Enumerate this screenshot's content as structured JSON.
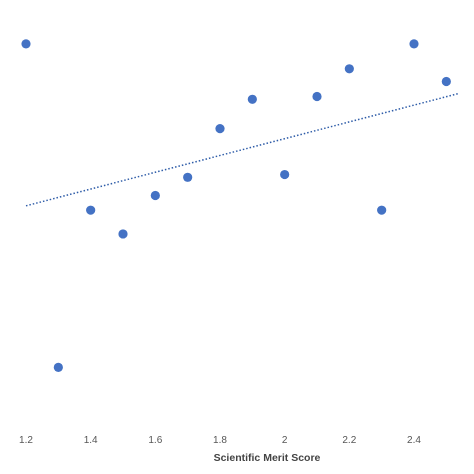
{
  "chart_data": {
    "type": "scatter",
    "xlabel": "Scientific Merit Score",
    "ylabel": "",
    "xlim": [
      1.17,
      2.54
    ],
    "ylim": [
      0,
      1
    ],
    "x_ticks": [
      "1.2",
      "1.4",
      "1.6",
      "1.8",
      "2",
      "2.2",
      "2.4"
    ],
    "x_tick_values": [
      1.2,
      1.4,
      1.6,
      1.8,
      2.0,
      2.2,
      2.4
    ],
    "grid": false,
    "points": [
      {
        "x": 1.2,
        "y": 0.965
      },
      {
        "x": 1.3,
        "y": 0.148
      },
      {
        "x": 1.4,
        "y": 0.545
      },
      {
        "x": 1.5,
        "y": 0.485
      },
      {
        "x": 1.6,
        "y": 0.582
      },
      {
        "x": 1.7,
        "y": 0.628
      },
      {
        "x": 1.8,
        "y": 0.751
      },
      {
        "x": 1.9,
        "y": 0.825
      },
      {
        "x": 2.0,
        "y": 0.635
      },
      {
        "x": 2.1,
        "y": 0.832
      },
      {
        "x": 2.2,
        "y": 0.902
      },
      {
        "x": 2.3,
        "y": 0.545
      },
      {
        "x": 2.4,
        "y": 0.965
      },
      {
        "x": 2.5,
        "y": 0.87
      }
    ],
    "trendline": {
      "style": "dotted",
      "x_start": 1.2,
      "y_start": 0.556,
      "x_end": 2.54,
      "y_end": 0.84
    },
    "colors": {
      "points": "#4472c4",
      "trendline": "#2e5ca8",
      "tick_labels": "#555555",
      "axis_title": "#444444"
    }
  }
}
